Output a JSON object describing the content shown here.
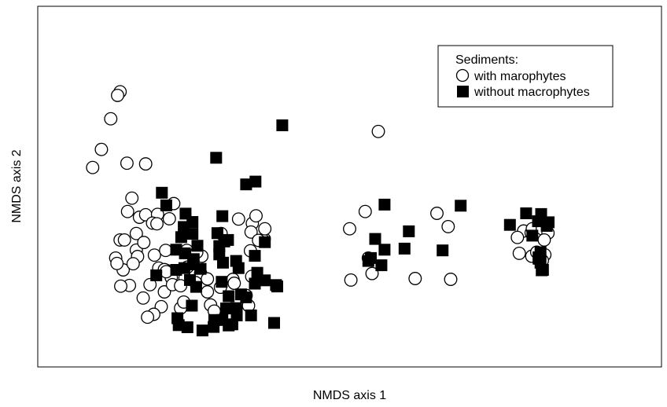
{
  "chart_data": {
    "type": "scatter",
    "title": "",
    "xlabel": "NMDS axis 1",
    "ylabel": "NMDS axis  2",
    "xlim": [
      0,
      100
    ],
    "ylim": [
      0,
      100
    ],
    "grid": false,
    "axis_ticks": false,
    "legend": {
      "position": "top-right",
      "title": "Sediments:",
      "entries": [
        "with marophytes",
        "without macrophytes"
      ]
    },
    "series": [
      {
        "name": "with marophytes",
        "marker": "open-circle",
        "color": "#000000",
        "points": [
          [
            13.2,
            76.3
          ],
          [
            12.8,
            75.3
          ],
          [
            11.7,
            68.8
          ],
          [
            10.2,
            60.3
          ],
          [
            8.8,
            55.3
          ],
          [
            14.3,
            56.5
          ],
          [
            17.3,
            56.3
          ],
          [
            15.1,
            46.8
          ],
          [
            14.4,
            43.1
          ],
          [
            16.3,
            41.5
          ],
          [
            13.2,
            35.2
          ],
          [
            13.9,
            35.2
          ],
          [
            17.3,
            42.2
          ],
          [
            15.8,
            32.4
          ],
          [
            13.7,
            26.9
          ],
          [
            12.5,
            30.2
          ],
          [
            19.2,
            42.3
          ],
          [
            18.4,
            39.9
          ],
          [
            15.8,
            37.0
          ],
          [
            17.0,
            34.5
          ],
          [
            14.7,
            22.6
          ],
          [
            13.3,
            22.4
          ],
          [
            19.1,
            39.7
          ],
          [
            21.1,
            41.1
          ],
          [
            21.8,
            45.3
          ],
          [
            16.0,
            30.6
          ],
          [
            18.7,
            31.0
          ],
          [
            12.7,
            28.7
          ],
          [
            15.3,
            28.6
          ],
          [
            20.5,
            32.3
          ],
          [
            19.4,
            27.4
          ],
          [
            20.7,
            26.7
          ],
          [
            23.9,
            32.3
          ],
          [
            26.3,
            30.7
          ],
          [
            25.5,
            31.8
          ],
          [
            20.3,
            27.0
          ],
          [
            21.4,
            24.8
          ],
          [
            23.6,
            24.6
          ],
          [
            18.0,
            22.8
          ],
          [
            20.3,
            20.8
          ],
          [
            16.9,
            19.1
          ],
          [
            22.9,
            16.3
          ],
          [
            26.1,
            26.0
          ],
          [
            27.2,
            24.4
          ],
          [
            29.3,
            22.1
          ],
          [
            31.3,
            24.3
          ],
          [
            31.5,
            23.2
          ],
          [
            29.4,
            37.0
          ],
          [
            32.2,
            41.0
          ],
          [
            34.4,
            39.8
          ],
          [
            35.0,
            41.9
          ],
          [
            34.2,
            37.4
          ],
          [
            36.3,
            35.5
          ],
          [
            34.1,
            32.2
          ],
          [
            36.1,
            35.2
          ],
          [
            33.4,
            19.8
          ],
          [
            34.3,
            25.1
          ],
          [
            36.4,
            38.3
          ],
          [
            35.4,
            35.1
          ],
          [
            20.6,
            26.4
          ],
          [
            21.6,
            22.8
          ],
          [
            19.8,
            16.7
          ],
          [
            18.6,
            14.6
          ],
          [
            17.6,
            13.8
          ],
          [
            23.4,
            18.0
          ],
          [
            27.7,
            17.2
          ],
          [
            28.3,
            15.5
          ],
          [
            22.9,
            22.5
          ],
          [
            24.0,
            27.7
          ],
          [
            25.3,
            23.4
          ],
          [
            27.2,
            20.8
          ],
          [
            33.8,
            17.0
          ],
          [
            54.6,
            65.3
          ],
          [
            52.5,
            43.1
          ],
          [
            50.0,
            38.3
          ],
          [
            53.0,
            30.2
          ],
          [
            50.2,
            24.1
          ],
          [
            53.6,
            25.9
          ],
          [
            60.5,
            24.5
          ],
          [
            64.0,
            42.6
          ],
          [
            65.8,
            38.9
          ],
          [
            66.2,
            24.3
          ],
          [
            77.9,
            37.7
          ],
          [
            79.1,
            37.2
          ],
          [
            79.3,
            38.3
          ],
          [
            80.9,
            38.3
          ],
          [
            81.8,
            37.1
          ],
          [
            81.2,
            35.2
          ],
          [
            76.9,
            35.9
          ],
          [
            77.2,
            31.5
          ],
          [
            79.2,
            30.7
          ],
          [
            80.0,
            31.8
          ],
          [
            81.3,
            31.1
          ],
          [
            80.9,
            29.5
          ]
        ]
      },
      {
        "name": "without macrophytes",
        "marker": "filled-square",
        "color": "#000000",
        "points": [
          [
            39.2,
            67.0
          ],
          [
            28.6,
            58.0
          ],
          [
            33.4,
            50.6
          ],
          [
            34.9,
            51.4
          ],
          [
            19.9,
            48.3
          ],
          [
            20.6,
            44.8
          ],
          [
            23.7,
            42.5
          ],
          [
            24.8,
            40.2
          ],
          [
            23.4,
            38.8
          ],
          [
            24.8,
            36.9
          ],
          [
            29.6,
            41.8
          ],
          [
            28.8,
            37.1
          ],
          [
            30.5,
            35.2
          ],
          [
            29.1,
            33.5
          ],
          [
            29.9,
            34.8
          ],
          [
            25.6,
            33.6
          ],
          [
            23.0,
            36.0
          ],
          [
            22.2,
            32.5
          ],
          [
            23.6,
            31.5
          ],
          [
            25.0,
            29.9
          ],
          [
            24.9,
            28.4
          ],
          [
            29.1,
            31.2
          ],
          [
            29.7,
            28.9
          ],
          [
            31.8,
            29.4
          ],
          [
            34.8,
            30.8
          ],
          [
            36.4,
            34.6
          ],
          [
            32.2,
            27.4
          ],
          [
            35.2,
            26.1
          ],
          [
            34.8,
            23.1
          ],
          [
            36.4,
            24.0
          ],
          [
            38.2,
            22.7
          ],
          [
            38.4,
            22.3
          ],
          [
            19.0,
            25.4
          ],
          [
            22.2,
            26.9
          ],
          [
            26.1,
            27.2
          ],
          [
            24.4,
            24.1
          ],
          [
            29.5,
            23.6
          ],
          [
            30.6,
            19.6
          ],
          [
            32.6,
            20.1
          ],
          [
            31.8,
            16.3
          ],
          [
            31.9,
            14.3
          ],
          [
            34.2,
            14.3
          ],
          [
            28.3,
            13.0
          ],
          [
            30.2,
            16.2
          ],
          [
            30.6,
            11.5
          ],
          [
            26.4,
            10.1
          ],
          [
            22.4,
            13.5
          ],
          [
            22.6,
            11.6
          ],
          [
            24.0,
            11.0
          ],
          [
            24.7,
            17.0
          ],
          [
            29.6,
            13.0
          ],
          [
            37.9,
            12.2
          ],
          [
            25.4,
            22.2
          ],
          [
            23.5,
            27.4
          ],
          [
            28.2,
            11.1
          ],
          [
            31.2,
            11.8
          ],
          [
            31.9,
            15.4
          ],
          [
            33.4,
            19.3
          ],
          [
            55.6,
            45.0
          ],
          [
            54.1,
            35.5
          ],
          [
            59.5,
            37.6
          ],
          [
            58.8,
            32.8
          ],
          [
            67.8,
            44.7
          ],
          [
            64.9,
            32.3
          ],
          [
            75.7,
            39.4
          ],
          [
            78.3,
            42.6
          ],
          [
            80.7,
            42.4
          ],
          [
            81.6,
            39.1
          ],
          [
            79.3,
            36.4
          ],
          [
            81.9,
            40.1
          ],
          [
            80.2,
            40.4
          ],
          [
            80.6,
            31.8
          ],
          [
            80.3,
            30.3
          ],
          [
            53.4,
            30.2
          ],
          [
            55.1,
            28.2
          ],
          [
            55.6,
            32.5
          ],
          [
            53.0,
            29.4
          ],
          [
            80.3,
            30.4
          ],
          [
            80.3,
            30.0
          ],
          [
            80.6,
            28.9
          ],
          [
            80.8,
            26.8
          ],
          [
            81.0,
            26.9
          ]
        ]
      }
    ]
  }
}
